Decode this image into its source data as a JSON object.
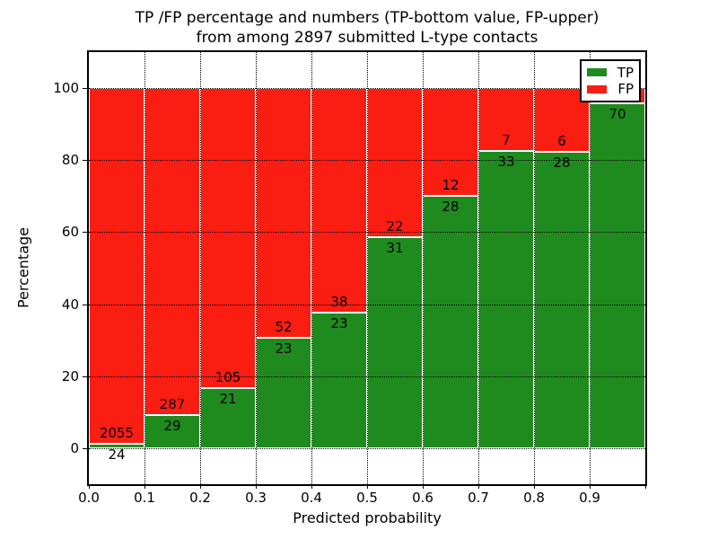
{
  "title": {
    "line1": "TP /FP percentage and numbers (TP-bottom value, FP-upper)",
    "line2": "from among 2897 submitted L-type contacts"
  },
  "axes": {
    "xlabel": "Predicted probability",
    "ylabel": "Percentage",
    "x_tick_labels": [
      "0.0",
      "0.1",
      "0.2",
      "0.3",
      "0.4",
      "0.5",
      "0.6",
      "0.7",
      "0.8",
      "0.9"
    ],
    "y_tick_labels": [
      "0",
      "20",
      "40",
      "60",
      "80",
      "100"
    ],
    "y_tick_values": [
      0,
      20,
      40,
      60,
      80,
      100
    ],
    "ylim": [
      -10,
      110
    ],
    "n_bins": 10,
    "grid": "dotted"
  },
  "legend": {
    "position": "upper-right",
    "items": [
      {
        "label": "TP",
        "color": "#1f8b1f"
      },
      {
        "label": "FP",
        "color": "#fa1d12"
      }
    ]
  },
  "colors": {
    "tp_green": "#1f8b1f",
    "fp_red": "#fa1d12",
    "grid": "#000000",
    "background": "#ffffff"
  },
  "chart_data": {
    "type": "bar",
    "stacked": true,
    "normalized_to": 100,
    "title": "TP /FP percentage and numbers (TP-bottom value, FP-upper) from among 2897 submitted L-type contacts",
    "xlabel": "Predicted probability",
    "ylabel": "Percentage",
    "ylim": [
      -10,
      110
    ],
    "total_submitted": 2897,
    "series": [
      {
        "name": "TP",
        "color": "#1f8b1f",
        "stack_position": "bottom"
      },
      {
        "name": "FP",
        "color": "#fa1d12",
        "stack_position": "top"
      }
    ],
    "bars": [
      {
        "bin": "0.0-0.1",
        "tp_count": 24,
        "fp_count": 2055,
        "tp_pct": 1.15,
        "fp_pct": 98.85
      },
      {
        "bin": "0.1-0.2",
        "tp_count": 29,
        "fp_count": 287,
        "tp_pct": 9.18,
        "fp_pct": 90.82
      },
      {
        "bin": "0.2-0.3",
        "tp_count": 21,
        "fp_count": 105,
        "tp_pct": 16.67,
        "fp_pct": 83.33
      },
      {
        "bin": "0.3-0.4",
        "tp_count": 23,
        "fp_count": 52,
        "tp_pct": 30.67,
        "fp_pct": 69.33
      },
      {
        "bin": "0.4-0.5",
        "tp_count": 23,
        "fp_count": 38,
        "tp_pct": 37.7,
        "fp_pct": 62.3
      },
      {
        "bin": "0.5-0.6",
        "tp_count": 31,
        "fp_count": 22,
        "tp_pct": 58.49,
        "fp_pct": 41.51
      },
      {
        "bin": "0.6-0.7",
        "tp_count": 28,
        "fp_count": 12,
        "tp_pct": 70.0,
        "fp_pct": 30.0
      },
      {
        "bin": "0.7-0.8",
        "tp_count": 33,
        "fp_count": 7,
        "tp_pct": 82.5,
        "fp_pct": 17.5
      },
      {
        "bin": "0.8-0.9",
        "tp_count": 28,
        "fp_count": 6,
        "tp_pct": 82.35,
        "fp_pct": 17.65
      },
      {
        "bin": "0.9-1.0",
        "tp_count": 70,
        "fp_count": null,
        "tp_pct": 95.89,
        "fp_pct": 4.11
      }
    ]
  }
}
